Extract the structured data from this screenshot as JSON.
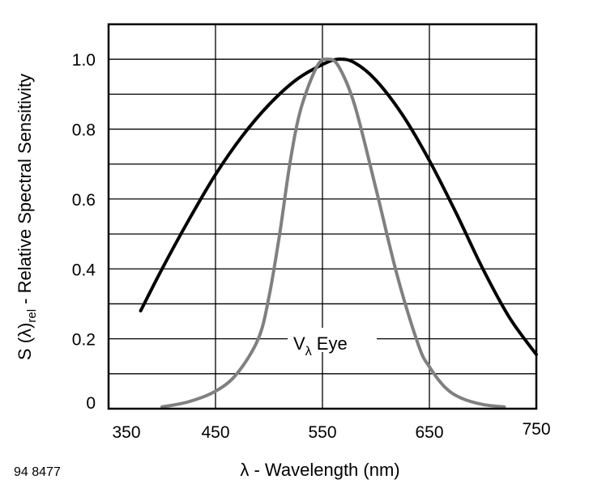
{
  "chart_data": {
    "type": "line",
    "xlabel": "λ - Wavelength (nm)",
    "ylabel": {
      "main": "S (λ)",
      "sub": "rel",
      "rest": " - Relative Spectral Sensitivity"
    },
    "xlim": [
      350,
      750
    ],
    "ylim": [
      0,
      1.1
    ],
    "xticks": [
      350,
      450,
      550,
      650,
      750
    ],
    "xtick_labels": [
      "350",
      "450",
      "550",
      "650",
      "750"
    ],
    "yticks": [
      0,
      0.2,
      0.4,
      0.6,
      0.8,
      1.0
    ],
    "ytick_labels": [
      "0",
      "0.2",
      "0.4",
      "0.6",
      "0.8",
      "1.0"
    ],
    "grid": true,
    "series": [
      {
        "color": "#000000",
        "x": [
          380,
          400,
          425,
          450,
          475,
          500,
          525,
          550,
          565,
          580,
          600,
          625,
          650,
          675,
          700,
          725,
          750
        ],
        "y": [
          0.28,
          0.4,
          0.54,
          0.67,
          0.78,
          0.87,
          0.94,
          0.985,
          1.0,
          0.99,
          0.94,
          0.84,
          0.71,
          0.56,
          0.4,
          0.26,
          0.155
        ]
      },
      {
        "name": "Vλ Eye",
        "color": "#808080",
        "x": [
          400,
          425,
          450,
          470,
          490,
          500,
          510,
          520,
          530,
          545,
          555,
          565,
          580,
          600,
          620,
          640,
          650,
          665,
          680,
          700,
          720
        ],
        "y": [
          0.005,
          0.02,
          0.05,
          0.1,
          0.2,
          0.32,
          0.5,
          0.71,
          0.86,
          0.98,
          1.0,
          0.98,
          0.87,
          0.63,
          0.38,
          0.18,
          0.12,
          0.06,
          0.03,
          0.012,
          0.005
        ]
      }
    ],
    "annotations": [
      {
        "text_main": "V",
        "text_sub": "λ",
        "text_rest": " Eye"
      }
    ]
  },
  "figure_code": "94 8477"
}
